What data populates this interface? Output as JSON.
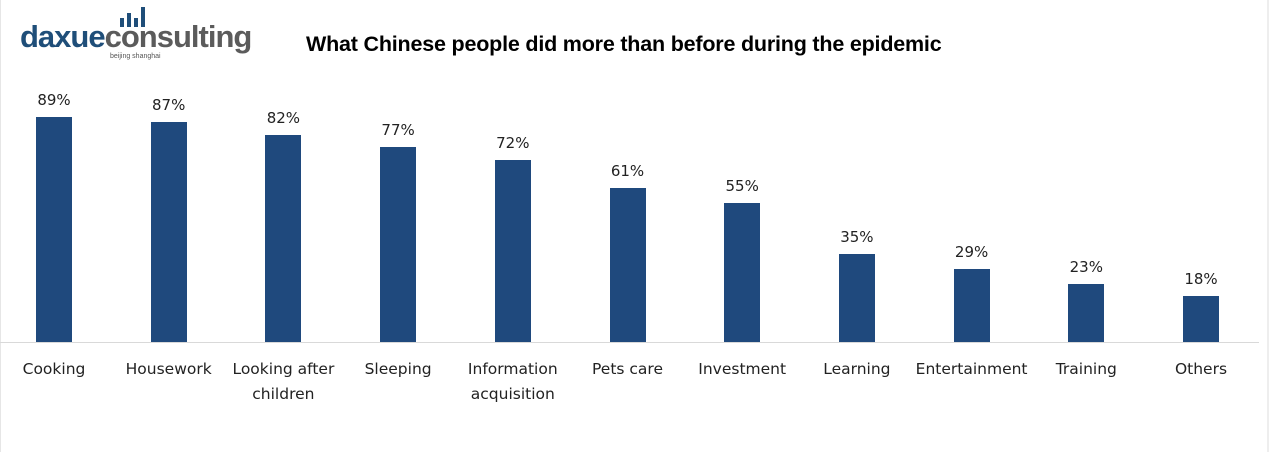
{
  "brand": {
    "part1": "daxue",
    "part2": "consulting",
    "tagline": "beijing shanghai",
    "primary_color": "#1f4e79",
    "secondary_color": "#5b5b5b"
  },
  "chart_data": {
    "type": "bar",
    "title": "What Chinese people did more than before during the epidemic",
    "xlabel": "",
    "ylabel": "",
    "categories": [
      "Cooking",
      "Housework",
      "Looking after children",
      "Sleeping",
      "Information acquisition",
      "Pets care",
      "Investment",
      "Learning",
      "Entertainment",
      "Training",
      "Others"
    ],
    "category_lines": [
      [
        "Cooking"
      ],
      [
        "Housework"
      ],
      [
        "Looking after",
        "children"
      ],
      [
        "Sleeping"
      ],
      [
        "Information",
        "acquisition"
      ],
      [
        "Pets care"
      ],
      [
        "Investment"
      ],
      [
        "Learning"
      ],
      [
        "Entertainment"
      ],
      [
        "Training"
      ],
      [
        "Others"
      ]
    ],
    "values": [
      89,
      87,
      82,
      77,
      72,
      61,
      55,
      35,
      29,
      23,
      18
    ],
    "labels": [
      "89%",
      "87%",
      "82%",
      "77%",
      "72%",
      "61%",
      "55%",
      "35%",
      "29%",
      "23%",
      "18%"
    ],
    "unit": "%",
    "ylim": [
      0,
      100
    ],
    "grid": false,
    "legend": null,
    "bar_color": "#1f497d"
  }
}
